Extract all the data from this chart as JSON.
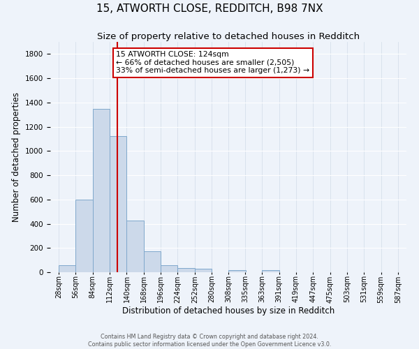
{
  "title": "15, ATWORTH CLOSE, REDDITCH, B98 7NX",
  "subtitle": "Size of property relative to detached houses in Redditch",
  "xlabel": "Distribution of detached houses by size in Redditch",
  "ylabel": "Number of detached properties",
  "bin_edges": [
    28,
    56,
    84,
    112,
    140,
    168,
    196,
    224,
    252,
    280,
    308,
    335,
    363,
    391,
    419,
    447,
    475,
    503,
    531,
    559,
    587
  ],
  "bar_heights": [
    60,
    600,
    1350,
    1120,
    425,
    170,
    60,
    35,
    30,
    0,
    20,
    0,
    20,
    0,
    0,
    0,
    0,
    0,
    0,
    0
  ],
  "bar_color": "#ccd9ea",
  "bar_edge_color": "#7fa8cc",
  "property_size": 124,
  "vline_color": "#cc0000",
  "annotation_line1": "15 ATWORTH CLOSE: 124sqm",
  "annotation_line2": "← 66% of detached houses are smaller (2,505)",
  "annotation_line3": "33% of semi-detached houses are larger (1,273) →",
  "annotation_box_edge": "#cc0000",
  "annotation_box_face": "#ffffff",
  "ylim": [
    0,
    1900
  ],
  "yticks": [
    0,
    200,
    400,
    600,
    800,
    1000,
    1200,
    1400,
    1600,
    1800
  ],
  "xlim_left": 14,
  "xlim_right": 601,
  "background_color": "#eef3fa",
  "footer_line1": "Contains HM Land Registry data © Crown copyright and database right 2024.",
  "footer_line2": "Contains public sector information licensed under the Open Government Licence v3.0.",
  "grid_color": "#d8e4f0",
  "title_fontsize": 11,
  "subtitle_fontsize": 9.5,
  "tick_label_fontsize": 7,
  "axis_label_fontsize": 8.5,
  "ylabel_fontsize": 8.5,
  "annotation_fontsize": 7.8
}
